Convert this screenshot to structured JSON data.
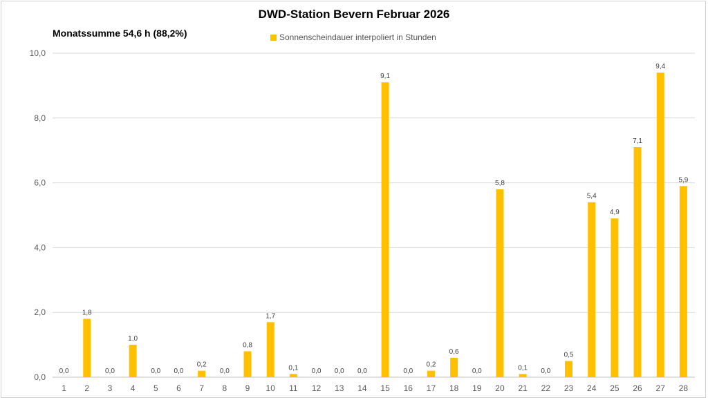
{
  "chart_data": {
    "type": "bar",
    "title": "DWD-Station Bevern Februar 2026",
    "subtitle": "Monatssumme 54,6 h (88,2%)",
    "legend": "Sonnenscheindauer interpoliert in Stunden",
    "legend_position": "top",
    "bar_color": "#ffc000",
    "grid": true,
    "xlabel": "",
    "ylabel": "",
    "ylim": [
      0,
      10
    ],
    "y_ticks": [
      "0,0",
      "2,0",
      "4,0",
      "6,0",
      "8,0",
      "10,0"
    ],
    "categories": [
      "1",
      "2",
      "3",
      "4",
      "5",
      "6",
      "7",
      "8",
      "9",
      "10",
      "11",
      "12",
      "13",
      "14",
      "15",
      "16",
      "17",
      "18",
      "19",
      "20",
      "21",
      "22",
      "23",
      "24",
      "25",
      "26",
      "27",
      "28"
    ],
    "values": [
      0.0,
      1.8,
      0.0,
      1.0,
      0.0,
      0.0,
      0.2,
      0.0,
      0.8,
      1.7,
      0.1,
      0.0,
      0.0,
      0.0,
      9.1,
      0.0,
      0.2,
      0.6,
      0.0,
      5.8,
      0.1,
      0.0,
      0.5,
      5.4,
      4.9,
      7.1,
      9.4,
      5.9
    ],
    "value_labels": [
      "0,0",
      "1,8",
      "0,0",
      "1,0",
      "0,0",
      "0,0",
      "0,2",
      "0,0",
      "0,8",
      "1,7",
      "0,1",
      "0,0",
      "0,0",
      "0,0",
      "9,1",
      "0,0",
      "0,2",
      "0,6",
      "0,0",
      "5,8",
      "0,1",
      "0,0",
      "0,5",
      "5,4",
      "4,9",
      "7,1",
      "9,4",
      "5,9"
    ]
  }
}
